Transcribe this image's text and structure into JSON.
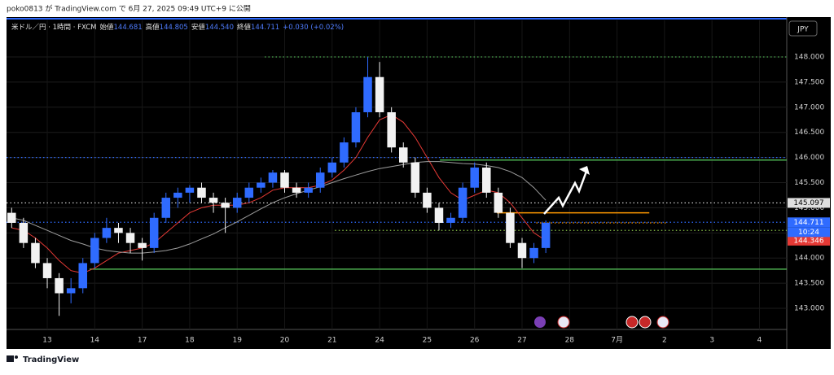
{
  "header": {
    "attribution": "poko0813 が TradingView.com で 6月 27, 2025 09:49 UTC+9 に公開"
  },
  "footer": {
    "brand": "TradingView"
  },
  "chart_data": {
    "type": "candlestick",
    "title": "米ドル／円 · 1時間 · FXCM",
    "ohlc_legend": [
      {
        "label": "始値",
        "value": "144.681"
      },
      {
        "label": "高値",
        "value": "144.805"
      },
      {
        "label": "安値",
        "value": "144.540"
      },
      {
        "label": "終値",
        "value": "144.711"
      }
    ],
    "change": "+0.030 (+0.02%)",
    "currency": "JPY",
    "up_color": "#2f6bff",
    "down_color": "#f2f2f2",
    "grid": true,
    "x": [
      -0.75,
      -0.5,
      -0.25,
      0,
      0.25,
      0.5,
      0.75,
      1,
      1.25,
      1.5,
      1.75,
      2,
      2.25,
      2.5,
      2.75,
      3,
      3.25,
      3.5,
      3.75,
      4,
      4.25,
      4.5,
      4.75,
      5,
      5.25,
      5.5,
      5.75,
      6,
      6.25,
      6.5,
      6.75,
      7,
      7.25,
      7.5,
      7.75,
      8,
      8.25,
      8.5,
      8.75,
      9,
      9.25,
      9.5,
      9.75,
      10,
      10.25,
      10.5
    ],
    "open": [
      144.9,
      144.7,
      144.3,
      143.9,
      143.6,
      143.3,
      143.4,
      143.9,
      144.4,
      144.6,
      144.5,
      144.3,
      144.2,
      144.8,
      145.2,
      145.3,
      145.4,
      145.2,
      145.1,
      145.0,
      145.2,
      145.4,
      145.5,
      145.7,
      145.4,
      145.3,
      145.4,
      145.7,
      145.9,
      146.3,
      146.9,
      147.6,
      146.9,
      146.2,
      145.9,
      145.3,
      145.0,
      144.7,
      144.8,
      145.4,
      145.8,
      145.3,
      144.9,
      144.3,
      144.0,
      144.2
    ],
    "high": [
      145.0,
      144.8,
      144.4,
      144.0,
      143.7,
      143.6,
      144.0,
      144.5,
      144.8,
      144.7,
      144.6,
      144.4,
      144.9,
      145.3,
      145.4,
      145.45,
      145.5,
      145.3,
      145.2,
      145.3,
      145.5,
      145.6,
      145.75,
      145.75,
      145.5,
      145.5,
      145.8,
      146.0,
      146.4,
      147.0,
      148.0,
      147.9,
      147.0,
      146.3,
      146.0,
      145.4,
      145.1,
      144.9,
      145.5,
      145.9,
      145.9,
      145.4,
      145.0,
      144.4,
      144.3,
      144.75
    ],
    "low": [
      144.6,
      144.2,
      143.8,
      143.4,
      142.85,
      143.1,
      143.3,
      143.8,
      144.3,
      144.3,
      144.1,
      143.95,
      144.1,
      144.7,
      145.0,
      145.1,
      145.1,
      144.9,
      144.5,
      144.9,
      145.1,
      145.3,
      145.4,
      145.3,
      145.2,
      145.2,
      145.3,
      145.6,
      145.8,
      146.2,
      146.8,
      146.8,
      146.1,
      145.8,
      145.2,
      144.9,
      144.55,
      144.6,
      144.7,
      145.3,
      145.2,
      144.8,
      144.2,
      143.8,
      143.9,
      144.1
    ],
    "close": [
      144.7,
      144.3,
      143.9,
      143.6,
      143.3,
      143.4,
      143.9,
      144.4,
      144.6,
      144.5,
      144.3,
      144.2,
      144.8,
      145.2,
      145.3,
      145.4,
      145.2,
      145.1,
      145.0,
      145.2,
      145.4,
      145.5,
      145.7,
      145.4,
      145.3,
      145.4,
      145.7,
      145.9,
      146.3,
      146.9,
      147.6,
      146.9,
      146.2,
      145.9,
      145.3,
      145.0,
      144.7,
      144.8,
      145.4,
      145.8,
      145.3,
      144.9,
      144.3,
      144.0,
      144.2,
      144.7
    ],
    "lines": [
      {
        "color": "#e53935",
        "values": [
          144.6,
          144.55,
          144.4,
          144.2,
          143.95,
          143.75,
          143.7,
          143.8,
          143.95,
          144.1,
          144.15,
          144.2,
          144.3,
          144.5,
          144.7,
          144.9,
          145.0,
          145.05,
          145.05,
          145.05,
          145.1,
          145.2,
          145.35,
          145.4,
          145.4,
          145.4,
          145.45,
          145.55,
          145.75,
          146.0,
          146.4,
          146.75,
          146.85,
          146.7,
          146.4,
          146.0,
          145.6,
          145.3,
          145.15,
          145.25,
          145.35,
          145.3,
          145.1,
          144.8,
          144.5,
          144.35
        ]
      },
      {
        "color": "#9e9e9e",
        "values": [
          144.8,
          144.75,
          144.65,
          144.55,
          144.45,
          144.35,
          144.28,
          144.2,
          144.15,
          144.12,
          144.1,
          144.1,
          144.12,
          144.15,
          144.2,
          144.28,
          144.38,
          144.48,
          144.6,
          144.72,
          144.85,
          144.98,
          145.1,
          145.2,
          145.28,
          145.35,
          145.42,
          145.5,
          145.58,
          145.65,
          145.72,
          145.78,
          145.82,
          145.86,
          145.9,
          145.92,
          145.92,
          145.9,
          145.88,
          145.87,
          145.84,
          145.8,
          145.72,
          145.6,
          145.4,
          145.15
        ]
      }
    ],
    "levels": [
      {
        "value": 148.0,
        "from": 4.58,
        "color": "#4caf50",
        "style": "dotted"
      },
      {
        "value": 146.0,
        "color": "#2f6bff",
        "style": "dotted"
      },
      {
        "value": 145.95,
        "from": 8.27,
        "color": "#4caf50",
        "style": "solid"
      },
      {
        "value": 145.097,
        "color": "#e0e0e0",
        "style": "dotted"
      },
      {
        "value": 144.9,
        "from": 9.47,
        "to": 12.68,
        "color": "#ff9800",
        "style": "solid"
      },
      {
        "value": 144.711,
        "color": "#2f6bff",
        "style": "dotted"
      },
      {
        "value": 144.7,
        "from": 10.3,
        "to": 13.07,
        "color": "#ff9800",
        "style": "dotted"
      },
      {
        "value": 144.55,
        "from": 6.06,
        "color": "#8bc34a",
        "style": "dotted"
      },
      {
        "value": 143.78,
        "from": 0.89,
        "color": "#4caf50",
        "style": "solid"
      }
    ],
    "price_labels": [
      {
        "value": 145.097,
        "label": "145.097",
        "color": "#e0e0e0",
        "text_color": "#000000"
      },
      {
        "value": 144.711,
        "label": "144.711",
        "color": "#2f6bff",
        "text_color": "#ffffff"
      },
      {
        "value": 144.346,
        "label": "144.346",
        "color": "#e53935",
        "text_color": "#ffffff"
      }
    ],
    "countdown": "10:24",
    "xlim": [
      -0.858,
      15.575
    ],
    "ylim": [
      142.58,
      148.728
    ],
    "xticks": [
      {
        "value": 0,
        "label": "13"
      },
      {
        "value": 1,
        "label": "14"
      },
      {
        "value": 2,
        "label": "17"
      },
      {
        "value": 3,
        "label": "18"
      },
      {
        "value": 4,
        "label": "19"
      },
      {
        "value": 5,
        "label": "20"
      },
      {
        "value": 6,
        "label": "21"
      },
      {
        "value": 7,
        "label": "24"
      },
      {
        "value": 8,
        "label": "25"
      },
      {
        "value": 9,
        "label": "26"
      },
      {
        "value": 10,
        "label": "27"
      },
      {
        "value": 11,
        "label": "28"
      },
      {
        "value": 12,
        "label": "7月"
      },
      {
        "value": 13,
        "label": "2"
      },
      {
        "value": 14,
        "label": "3"
      },
      {
        "value": 15,
        "label": "4"
      }
    ],
    "yticks": [
      {
        "value": 143,
        "label": "143.000"
      },
      {
        "value": 143.5,
        "label": "143.500"
      },
      {
        "value": 144,
        "label": "144.000"
      },
      {
        "value": 144.5,
        "label": "144.500"
      },
      {
        "value": 145,
        "label": "145.000"
      },
      {
        "value": 145.5,
        "label": "145.500"
      },
      {
        "value": 146,
        "label": "146.000"
      },
      {
        "value": 146.5,
        "label": "146.500"
      },
      {
        "value": 147,
        "label": "147.000"
      },
      {
        "value": 147.5,
        "label": "147.500"
      },
      {
        "value": 148,
        "label": "148.000"
      }
    ]
  }
}
